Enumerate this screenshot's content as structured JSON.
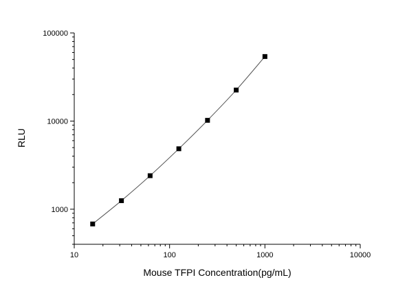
{
  "chart_data": {
    "type": "scatter",
    "title": "",
    "xlabel": "Mouse TFPI Concentration(pg/mL)",
    "ylabel": "RLU",
    "x_scale": "log",
    "y_scale": "log",
    "xlim": [
      10,
      10000
    ],
    "ylim": [
      400,
      100000
    ],
    "x_ticks": [
      10,
      100,
      1000,
      10000
    ],
    "x_tick_labels": [
      "10",
      "100",
      "1000",
      "10000"
    ],
    "y_ticks": [
      1000,
      10000,
      100000
    ],
    "y_tick_labels": [
      "1000",
      "10000",
      "100000"
    ],
    "grid": false,
    "legend": "none",
    "series": [
      {
        "x": [
          15.6,
          31.25,
          62.5,
          125,
          250,
          500,
          1000
        ],
        "y": [
          680,
          1250,
          2400,
          4850,
          10200,
          22500,
          54000
        ],
        "marker": "square",
        "color": "#000000",
        "fit_line": true,
        "line_color": "#555555"
      }
    ]
  }
}
